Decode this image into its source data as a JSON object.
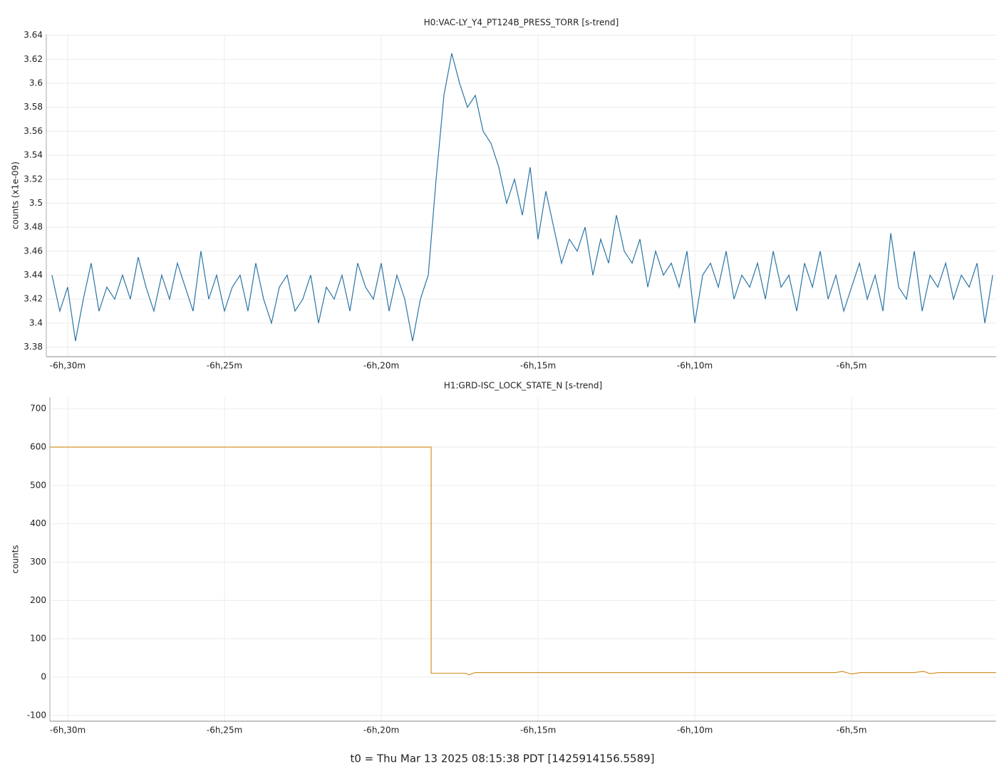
{
  "chart_data": [
    {
      "type": "line",
      "title": "H0:VAC-LY_Y4_PT124B_PRESS_TORR [s-trend]",
      "ylabel": "counts (x1e-09)",
      "color": "#2b74a6",
      "grid": true,
      "xlim": [
        -390.68,
        -360.39
      ],
      "ylim": [
        3.372,
        3.641
      ],
      "xticks": [
        {
          "value": -390,
          "label": "-6h,30m"
        },
        {
          "value": -385,
          "label": "-6h,25m"
        },
        {
          "value": -380,
          "label": "-6h,20m"
        },
        {
          "value": -375,
          "label": "-6h,15m"
        },
        {
          "value": -370,
          "label": "-6h,10m"
        },
        {
          "value": -365,
          "label": "-6h,5m"
        }
      ],
      "yticks": [
        3.38,
        3.4,
        3.42,
        3.44,
        3.46,
        3.48,
        3.5,
        3.52,
        3.54,
        3.56,
        3.58,
        3.6,
        3.62,
        3.64
      ],
      "x": [
        -390.5,
        -390.25,
        -390,
        -389.75,
        -389.5,
        -389.25,
        -389,
        -388.75,
        -388.5,
        -388.25,
        -388,
        -387.75,
        -387.5,
        -387.25,
        -387,
        -386.75,
        -386.5,
        -386.25,
        -386,
        -385.75,
        -385.5,
        -385.25,
        -385,
        -384.75,
        -384.5,
        -384.25,
        -384,
        -383.75,
        -383.5,
        -383.25,
        -383,
        -382.75,
        -382.5,
        -382.25,
        -382,
        -381.75,
        -381.5,
        -381.25,
        -381,
        -380.75,
        -380.5,
        -380.25,
        -380,
        -379.75,
        -379.5,
        -379.25,
        -379,
        -378.75,
        -378.5,
        -378.25,
        -378,
        -377.75,
        -377.5,
        -377.25,
        -377,
        -376.75,
        -376.5,
        -376.25,
        -376,
        -375.75,
        -375.5,
        -375.25,
        -375,
        -374.75,
        -374.5,
        -374.25,
        -374,
        -373.75,
        -373.5,
        -373.25,
        -373,
        -372.75,
        -372.5,
        -372.25,
        -372,
        -371.75,
        -371.5,
        -371.25,
        -371,
        -370.75,
        -370.5,
        -370.25,
        -370,
        -369.75,
        -369.5,
        -369.25,
        -369,
        -368.75,
        -368.5,
        -368.25,
        -368,
        -367.75,
        -367.5,
        -367.25,
        -367,
        -366.75,
        -366.5,
        -366.25,
        -366,
        -365.75,
        -365.5,
        -365.25,
        -365,
        -364.75,
        -364.5,
        -364.25,
        -364,
        -363.75,
        -363.5,
        -363.25,
        -363,
        -362.75,
        -362.5,
        -362.25,
        -362,
        -361.75,
        -361.5,
        -361.25,
        -361,
        -360.75,
        -360.5
      ],
      "values": [
        3.44,
        3.41,
        3.43,
        3.385,
        3.42,
        3.45,
        3.41,
        3.43,
        3.42,
        3.44,
        3.42,
        3.455,
        3.43,
        3.41,
        3.44,
        3.42,
        3.45,
        3.43,
        3.41,
        3.46,
        3.42,
        3.44,
        3.41,
        3.43,
        3.44,
        3.41,
        3.45,
        3.42,
        3.4,
        3.43,
        3.44,
        3.41,
        3.42,
        3.44,
        3.4,
        3.43,
        3.42,
        3.44,
        3.41,
        3.45,
        3.43,
        3.42,
        3.45,
        3.41,
        3.44,
        3.42,
        3.385,
        3.42,
        3.44,
        3.52,
        3.59,
        3.625,
        3.6,
        3.58,
        3.59,
        3.56,
        3.55,
        3.53,
        3.5,
        3.52,
        3.49,
        3.53,
        3.47,
        3.51,
        3.48,
        3.45,
        3.47,
        3.46,
        3.48,
        3.44,
        3.47,
        3.45,
        3.49,
        3.46,
        3.45,
        3.47,
        3.43,
        3.46,
        3.44,
        3.45,
        3.43,
        3.46,
        3.4,
        3.44,
        3.45,
        3.43,
        3.46,
        3.42,
        3.44,
        3.43,
        3.45,
        3.42,
        3.46,
        3.43,
        3.44,
        3.41,
        3.45,
        3.43,
        3.46,
        3.42,
        3.44,
        3.41,
        3.43,
        3.45,
        3.42,
        3.44,
        3.41,
        3.475,
        3.43,
        3.42,
        3.46,
        3.41,
        3.44,
        3.43,
        3.45,
        3.42,
        3.44,
        3.43,
        3.45,
        3.4,
        3.44
      ]
    },
    {
      "type": "line",
      "title": "H1:GRD-ISC_LOCK_STATE_N [s-trend]",
      "ylabel": "counts",
      "color": "#d4922a",
      "grid": true,
      "xlim": [
        -390.57,
        -360.39
      ],
      "ylim": [
        -115,
        730
      ],
      "xticks": [
        {
          "value": -390,
          "label": "-6h,30m"
        },
        {
          "value": -385,
          "label": "-6h,25m"
        },
        {
          "value": -380,
          "label": "-6h,20m"
        },
        {
          "value": -375,
          "label": "-6h,15m"
        },
        {
          "value": -370,
          "label": "-6h,10m"
        },
        {
          "value": -365,
          "label": "-6h,5m"
        }
      ],
      "yticks": [
        -100,
        0,
        100,
        200,
        300,
        400,
        500,
        600,
        700
      ],
      "x": [
        -390.57,
        -378.41,
        -378.41,
        -377.3,
        -377.2,
        -377.0,
        -365.5,
        -365.3,
        -365.0,
        -364.7,
        -363.0,
        -362.7,
        -362.5,
        -362.2,
        -360.39
      ],
      "values": [
        600,
        600,
        10,
        10,
        6,
        12,
        12,
        15,
        8,
        12,
        12,
        15,
        9,
        12,
        12
      ]
    }
  ],
  "footer": "t0 = Thu Mar 13 2025 08:15:38 PDT [1425914156.5589]"
}
